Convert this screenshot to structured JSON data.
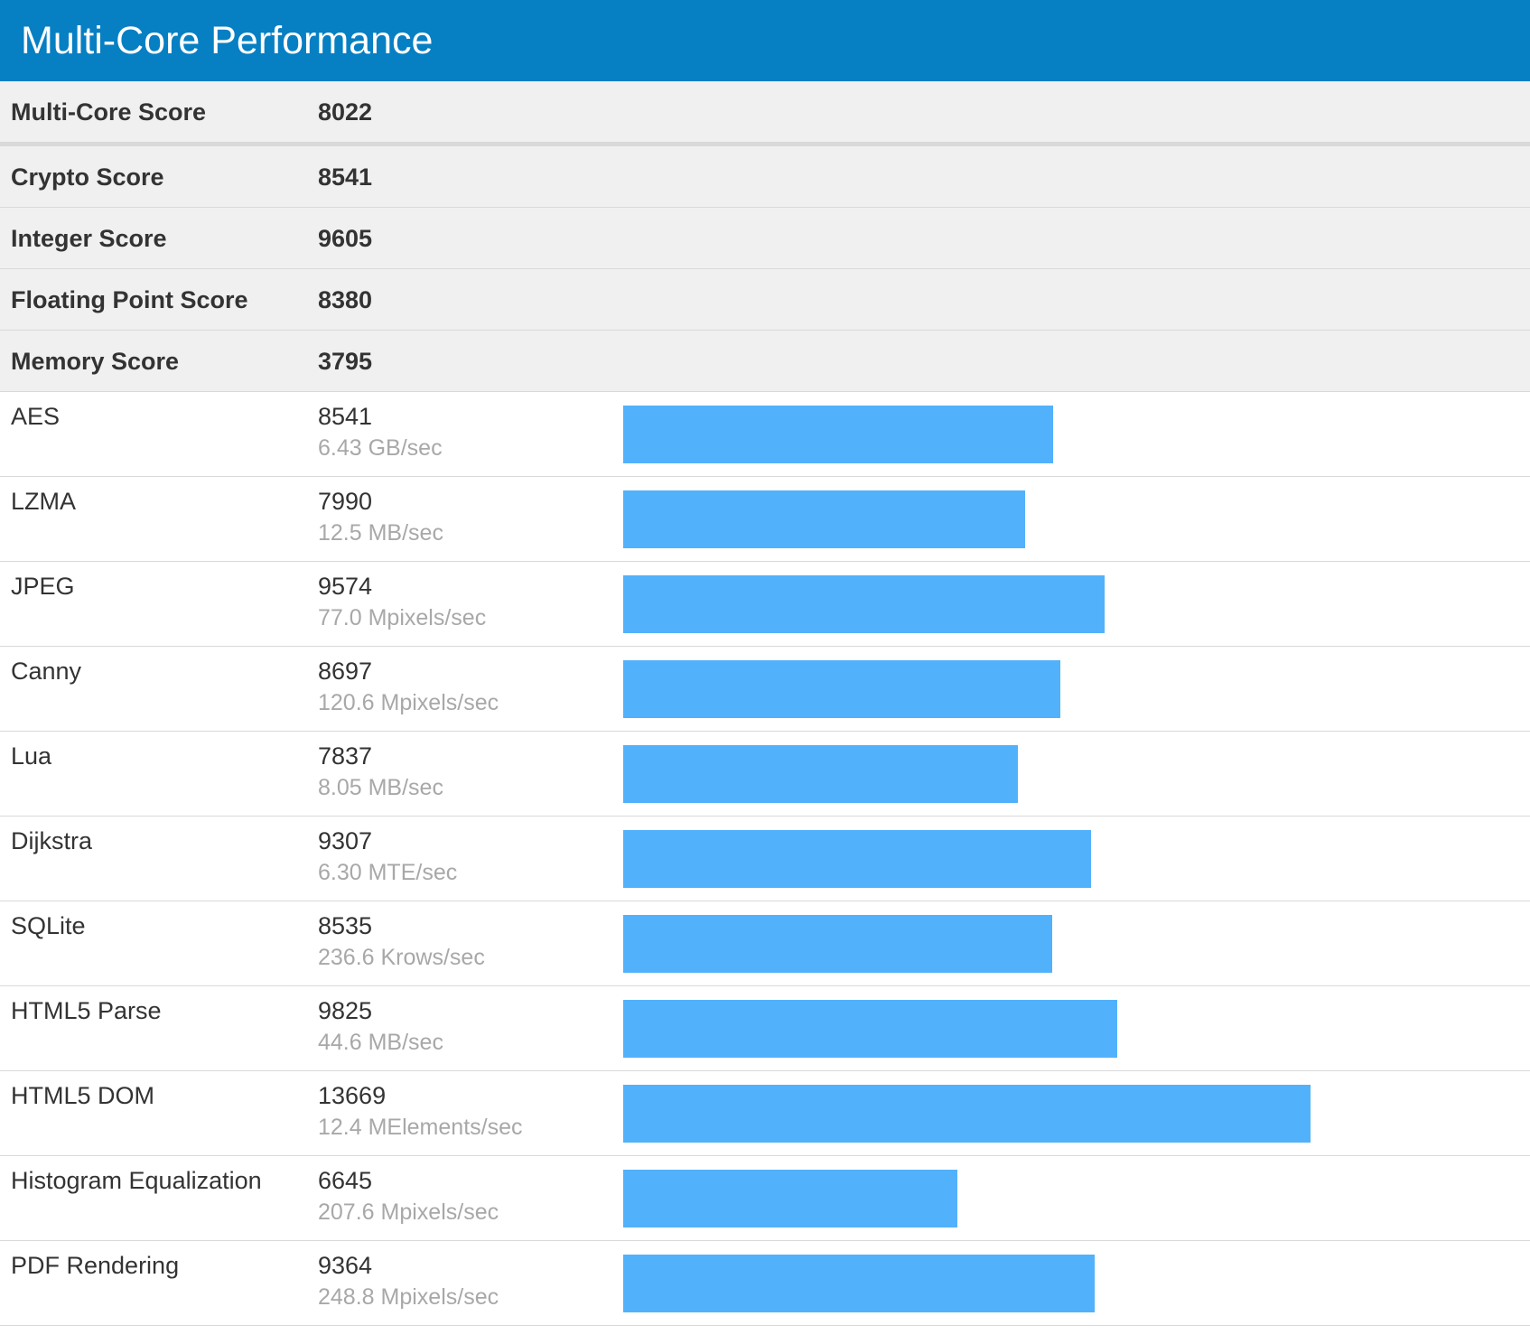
{
  "header": {
    "title": "Multi-Core Performance"
  },
  "summary": [
    {
      "label": "Multi-Core Score",
      "score": 8022
    },
    {
      "label": "Crypto Score",
      "score": 8541
    },
    {
      "label": "Integer Score",
      "score": 9605
    },
    {
      "label": "Floating Point Score",
      "score": 8380
    },
    {
      "label": "Memory Score",
      "score": 3795
    }
  ],
  "benchmarks": [
    {
      "name": "AES",
      "score": 8541,
      "rate": "6.43 GB/sec"
    },
    {
      "name": "LZMA",
      "score": 7990,
      "rate": "12.5 MB/sec"
    },
    {
      "name": "JPEG",
      "score": 9574,
      "rate": "77.0 Mpixels/sec"
    },
    {
      "name": "Canny",
      "score": 8697,
      "rate": "120.6 Mpixels/sec"
    },
    {
      "name": "Lua",
      "score": 7837,
      "rate": "8.05 MB/sec"
    },
    {
      "name": "Dijkstra",
      "score": 9307,
      "rate": "6.30 MTE/sec"
    },
    {
      "name": "SQLite",
      "score": 8535,
      "rate": "236.6 Krows/sec"
    },
    {
      "name": "HTML5 Parse",
      "score": 9825,
      "rate": "44.6 MB/sec"
    },
    {
      "name": "HTML5 DOM",
      "score": 13669,
      "rate": "12.4 MElements/sec"
    },
    {
      "name": "Histogram Equalization",
      "score": 6645,
      "rate": "207.6 Mpixels/sec"
    },
    {
      "name": "PDF Rendering",
      "score": 9364,
      "rate": "248.8 Mpixels/sec"
    }
  ]
}
